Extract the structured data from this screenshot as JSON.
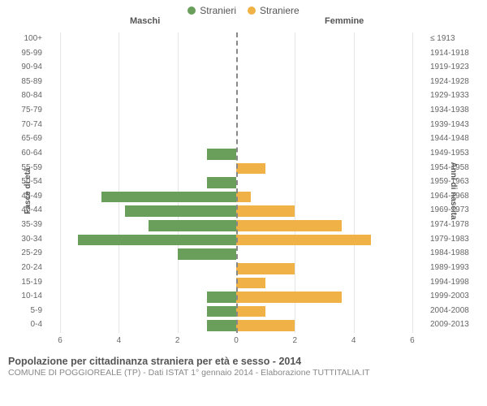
{
  "legend": {
    "male": {
      "label": "Stranieri",
      "color": "#6a9e5b"
    },
    "female": {
      "label": "Straniere",
      "color": "#f0b246"
    }
  },
  "headers": {
    "male": "Maschi",
    "female": "Femmine"
  },
  "axis": {
    "left_title": "Fasce di età",
    "right_title": "Anni di nascita",
    "xlim": 6.5,
    "xticks": [
      6,
      4,
      2,
      0,
      2,
      4,
      6
    ],
    "grid_color": "#e6e6e6",
    "center_color": "#888888"
  },
  "rows": [
    {
      "age": "100+",
      "year": "≤ 1913",
      "m": 0,
      "f": 0
    },
    {
      "age": "95-99",
      "year": "1914-1918",
      "m": 0,
      "f": 0
    },
    {
      "age": "90-94",
      "year": "1919-1923",
      "m": 0,
      "f": 0
    },
    {
      "age": "85-89",
      "year": "1924-1928",
      "m": 0,
      "f": 0
    },
    {
      "age": "80-84",
      "year": "1929-1933",
      "m": 0,
      "f": 0
    },
    {
      "age": "75-79",
      "year": "1934-1938",
      "m": 0,
      "f": 0
    },
    {
      "age": "70-74",
      "year": "1939-1943",
      "m": 0,
      "f": 0
    },
    {
      "age": "65-69",
      "year": "1944-1948",
      "m": 0,
      "f": 0
    },
    {
      "age": "60-64",
      "year": "1949-1953",
      "m": 1.0,
      "f": 0
    },
    {
      "age": "55-59",
      "year": "1954-1958",
      "m": 0,
      "f": 1.0
    },
    {
      "age": "50-54",
      "year": "1959-1963",
      "m": 1.0,
      "f": 0
    },
    {
      "age": "45-49",
      "year": "1964-1968",
      "m": 4.6,
      "f": 0.5
    },
    {
      "age": "40-44",
      "year": "1969-1973",
      "m": 3.8,
      "f": 2.0
    },
    {
      "age": "35-39",
      "year": "1974-1978",
      "m": 3.0,
      "f": 3.6
    },
    {
      "age": "30-34",
      "year": "1979-1983",
      "m": 5.4,
      "f": 4.6
    },
    {
      "age": "25-29",
      "year": "1984-1988",
      "m": 2.0,
      "f": 0
    },
    {
      "age": "20-24",
      "year": "1989-1993",
      "m": 0,
      "f": 2.0
    },
    {
      "age": "15-19",
      "year": "1994-1998",
      "m": 0,
      "f": 1.0
    },
    {
      "age": "10-14",
      "year": "1999-2003",
      "m": 1.0,
      "f": 3.6
    },
    {
      "age": "5-9",
      "year": "2004-2008",
      "m": 1.0,
      "f": 1.0
    },
    {
      "age": "0-4",
      "year": "2009-2013",
      "m": 1.0,
      "f": 2.0
    }
  ],
  "colors": {
    "male_bar": "#6a9e5b",
    "female_bar": "#f0b246",
    "background": "#ffffff"
  },
  "footer": {
    "title": "Popolazione per cittadinanza straniera per età e sesso - 2014",
    "subtitle": "COMUNE DI POGGIOREALE (TP) - Dati ISTAT 1° gennaio 2014 - Elaborazione TUTTITALIA.IT"
  }
}
